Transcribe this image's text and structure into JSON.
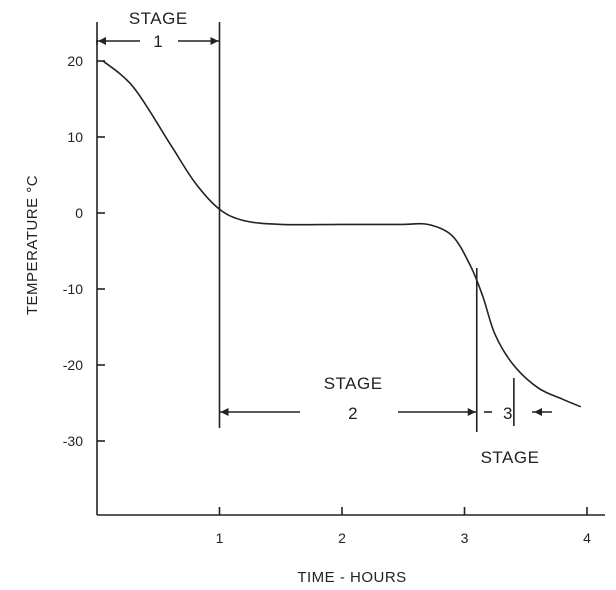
{
  "chart_data": {
    "type": "line",
    "xlabel": "TIME - HOURS",
    "ylabel": "TEMPERATURE °C",
    "xlim": [
      0,
      4
    ],
    "ylim": [
      -40,
      25
    ],
    "x_ticks": [
      1,
      2,
      3,
      4
    ],
    "y_ticks": [
      20,
      10,
      0,
      -10,
      -20,
      -30
    ],
    "grid": false,
    "series": [
      {
        "x": [
          0.05,
          0.3,
          0.6,
          0.8,
          1.0,
          1.2,
          1.5,
          2.0,
          2.5,
          2.7,
          2.9,
          3.05,
          3.15,
          3.25,
          3.4,
          3.6,
          3.8,
          3.95
        ],
        "y": [
          20,
          16.5,
          9,
          4,
          0.5,
          -1,
          -1.5,
          -1.5,
          -1.5,
          -1.5,
          -3,
          -7,
          -11,
          -16,
          -20,
          -23,
          -24.5,
          -25.5
        ]
      }
    ],
    "annotations": [
      {
        "id": "stage1",
        "label_lines": [
          "STAGE",
          "1"
        ],
        "x_start": 0,
        "x_end": 1.0
      },
      {
        "id": "stage2",
        "label_lines": [
          "STAGE",
          "2"
        ],
        "x_start": 1.0,
        "x_end": 3.1
      },
      {
        "id": "stage3",
        "label_lines": [
          "3",
          "STAGE"
        ],
        "x_start": 3.1,
        "x_end": 3.55
      }
    ]
  }
}
